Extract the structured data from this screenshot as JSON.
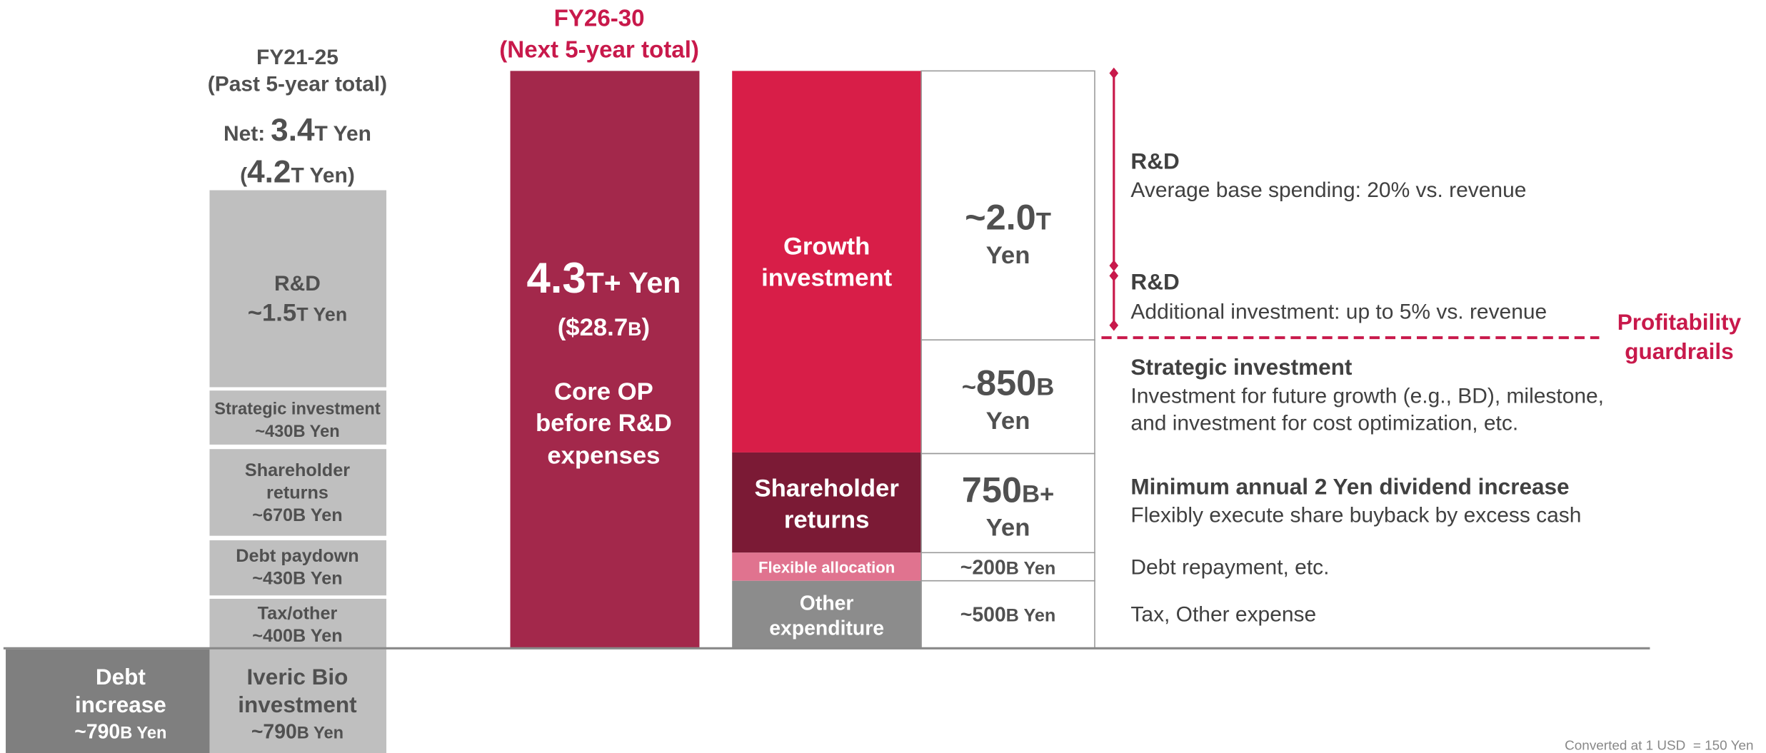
{
  "past": {
    "period": "FY21-25",
    "subtitle": "(Past 5-year total)",
    "net": [
      "Net:",
      "3.4",
      "T Yen"
    ],
    "gross": [
      "(",
      "4.2",
      "T Yen)"
    ],
    "blocks": [
      {
        "lines": [
          "R&D"
        ],
        "amount": [
          "~1.5",
          "T Yen"
        ]
      },
      {
        "lines": [
          "Strategic investment"
        ],
        "amount": [
          "~430B Yen"
        ]
      },
      {
        "lines": [
          "Shareholder",
          "returns"
        ],
        "amount": [
          "~670B Yen"
        ]
      },
      {
        "lines": [
          "Debt paydown"
        ],
        "amount": [
          "~430B Yen"
        ]
      },
      {
        "lines": [
          "Tax/other"
        ],
        "amount": [
          "~400B Yen"
        ]
      },
      {
        "lines": [
          "Iveric Bio",
          "investment"
        ],
        "amount": [
          "~790",
          "B Yen"
        ]
      }
    ],
    "debt": {
      "lines": [
        "Debt",
        "increase"
      ],
      "amount": [
        "~790",
        "B Yen"
      ]
    }
  },
  "next": {
    "period": "FY26-30",
    "subtitle": "(Next 5-year total)",
    "total": [
      "4.3",
      "T+ Yen"
    ],
    "usd": [
      "($28.7",
      "B",
      ")"
    ],
    "lines": [
      "Core OP",
      "before R&D",
      "expenses"
    ]
  },
  "allocation": [
    {
      "lines": [
        "Growth",
        "investment"
      ]
    },
    {
      "lines": [
        "Shareholder",
        "returns"
      ]
    },
    {
      "lines": [
        "Flexible allocation"
      ]
    },
    {
      "lines": [
        "Other",
        "expenditure"
      ]
    }
  ],
  "amounts": [
    {
      "main": [
        "~2.0",
        "T"
      ],
      "unit": "Yen"
    },
    {
      "main": [
        "~",
        "850",
        "B"
      ],
      "unit": "Yen"
    },
    {
      "main": [
        "750",
        "B+"
      ],
      "unit": "Yen"
    },
    {
      "main": [
        "~200",
        "B Yen"
      ]
    },
    {
      "main": [
        "~500",
        "B Yen"
      ]
    }
  ],
  "notes": [
    {
      "title": "R&D",
      "lines": [
        "Average base spending: 20% vs. revenue"
      ]
    },
    {
      "title": "R&D",
      "lines": [
        "Additional investment: up to 5% vs. revenue"
      ]
    },
    {
      "title": "Strategic investment",
      "lines": [
        "Investment for future growth (e.g., BD), milestone,",
        "and investment for cost optimization, etc."
      ]
    },
    {
      "title": "Minimum annual 2 Yen dividend increase",
      "lines": [
        "Flexibly execute share buyback by excess cash"
      ]
    },
    {
      "lines": [
        "Debt repayment, etc."
      ]
    },
    {
      "lines": [
        "Tax, Other expense"
      ]
    }
  ],
  "guardrail": [
    "Profitability",
    "guardrails"
  ],
  "footnote": "Converted at 1 USD  = 150 Yen"
}
